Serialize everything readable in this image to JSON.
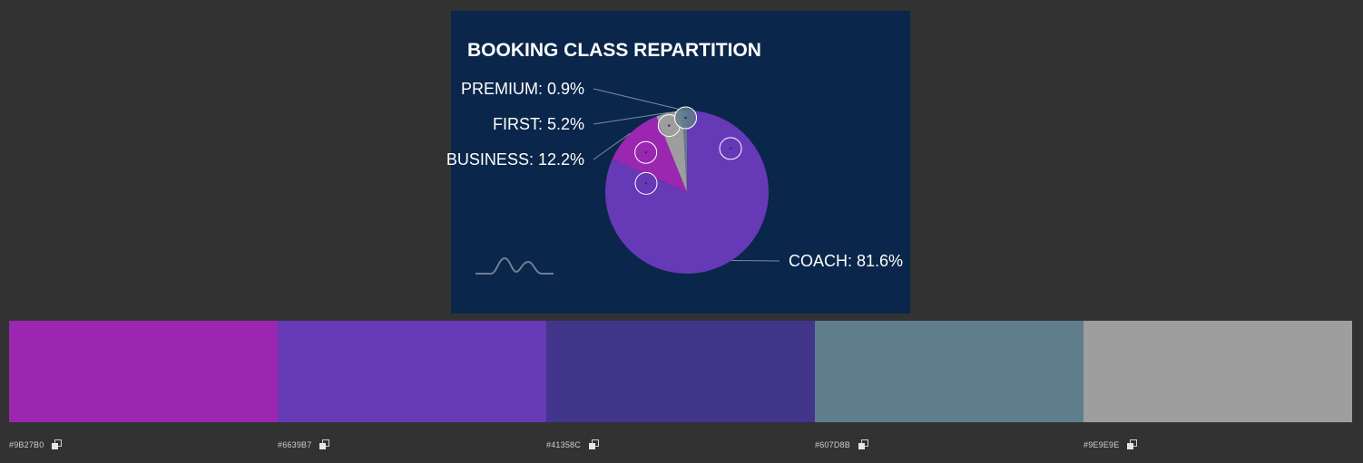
{
  "chart_data": {
    "type": "pie",
    "title": "BOOKING CLASS REPARTITION",
    "slices": [
      {
        "name": "COACH",
        "value": 81.6,
        "label": "COACH: 81.6%",
        "color": "#6639B7"
      },
      {
        "name": "BUSINESS",
        "value": 12.2,
        "label": "BUSINESS: 12.2%",
        "color": "#9B27B0"
      },
      {
        "name": "FIRST",
        "value": 5.2,
        "label": "FIRST: 5.2%",
        "color": "#9E9E9E"
      },
      {
        "name": "PREMIUM",
        "value": 0.9,
        "label": "PREMIUM: 0.9%",
        "color": "#607D8B"
      }
    ],
    "background": "#0A264A"
  },
  "palette": [
    {
      "hex": "#9B27B0",
      "label": "#9B27B0",
      "copy_icon": "copy-icon"
    },
    {
      "hex": "#6639B7",
      "label": "#6639B7",
      "copy_icon": "copy-icon"
    },
    {
      "hex": "#41358C",
      "label": "#41358C",
      "copy_icon": "copy-icon"
    },
    {
      "hex": "#607D8B",
      "label": "#607D8B",
      "copy_icon": "copy-icon"
    },
    {
      "hex": "#9E9E9E",
      "label": "#9E9E9E",
      "copy_icon": "copy-icon"
    }
  ],
  "logo": "wave-logo"
}
